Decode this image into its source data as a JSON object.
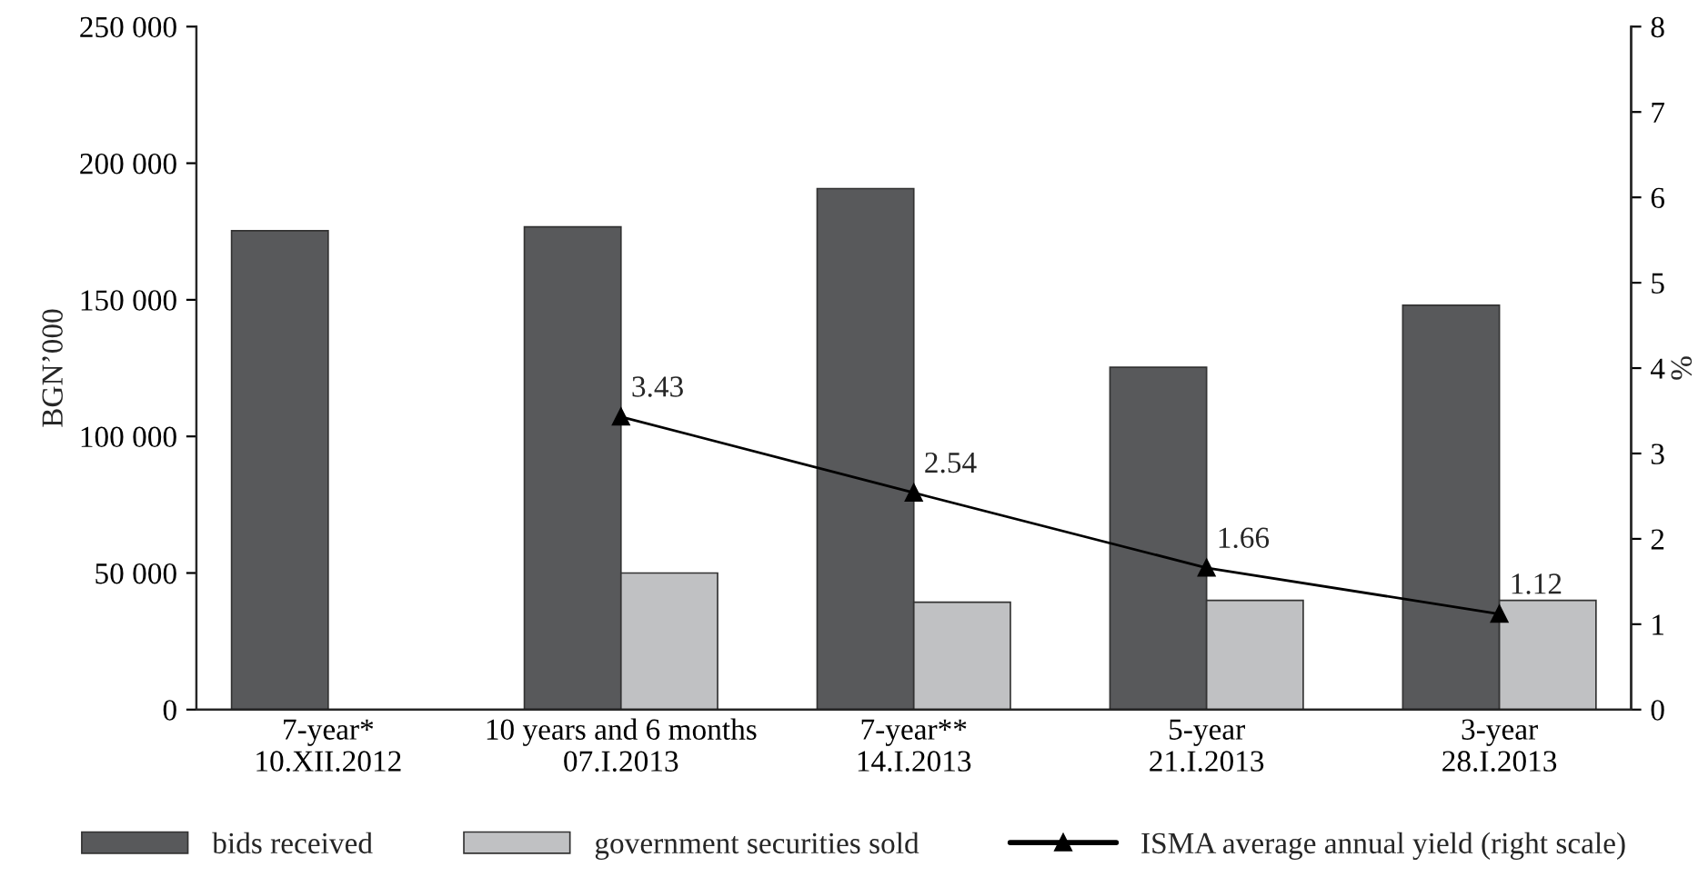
{
  "chart_data": {
    "type": "bar",
    "categories": [
      "7-year*\n10.XII.2012",
      "10 years and 6 months\n07.I.2013",
      "7-year**\n14.I.2013",
      "5-year\n21.I.2013",
      "3-year\n28.I.2013"
    ],
    "ylabel": "BGN’000",
    "y2label": "%",
    "ylim": [
      0,
      250000
    ],
    "yticks": [
      {
        "value": 0,
        "label": "0"
      },
      {
        "value": 50000,
        "label": "50 000"
      },
      {
        "value": 100000,
        "label": "100 000"
      },
      {
        "value": 150000,
        "label": "150 000"
      },
      {
        "value": 200000,
        "label": "200 000"
      },
      {
        "value": 250000,
        "label": "250 000"
      }
    ],
    "y2lim": [
      0,
      8
    ],
    "y2ticks": [
      0,
      1,
      2,
      3,
      4,
      5,
      6,
      7,
      8
    ],
    "series": [
      {
        "name": "bids received",
        "color": "#58595b",
        "values": [
          175300,
          176700,
          190700,
          125300,
          148000
        ]
      },
      {
        "name": "government securities sold",
        "color": "#c0c1c3",
        "values": [
          null,
          50000,
          39300,
          40000,
          40000
        ]
      },
      {
        "name": "ISMA average annual yield (right scale)",
        "type": "line",
        "axis": "y2",
        "color": "#000000",
        "marker": "triangle",
        "values": [
          null,
          3.43,
          2.54,
          1.66,
          1.12
        ],
        "value_labels": [
          null,
          "3.43",
          "2.54",
          "1.66",
          "1.12"
        ]
      }
    ],
    "legend": "bottom",
    "grid": false
  }
}
